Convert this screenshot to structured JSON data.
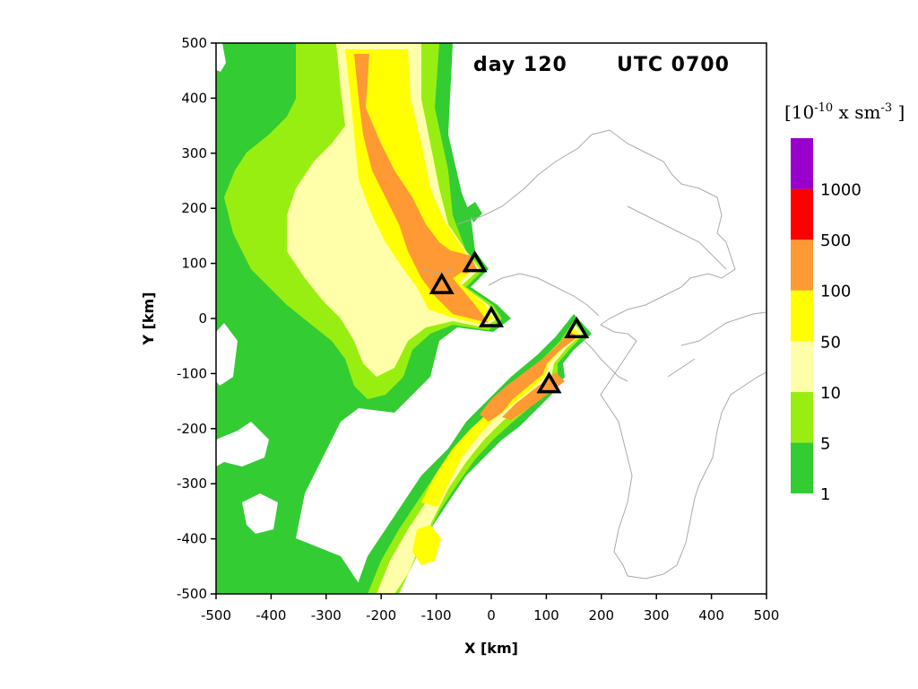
{
  "chart_data": {
    "type": "contour",
    "title_day": "day 120",
    "title_time": "UTC 0700",
    "xlabel": "X [km]",
    "ylabel": "Y [km]",
    "xlim": [
      -500,
      500
    ],
    "ylim": [
      -500,
      500
    ],
    "xticks": [
      "-500",
      "-400",
      "-300",
      "-200",
      "-100",
      "0",
      "100",
      "200",
      "300",
      "400",
      "500"
    ],
    "yticks": [
      "500",
      "400",
      "300",
      "200",
      "100",
      "0",
      "-100",
      "-200",
      "-300",
      "-400",
      "-500"
    ],
    "colorbar": {
      "unit_base": "[10",
      "unit_exp1": "-10",
      "unit_mid": " x sm",
      "unit_exp2": "-3",
      "unit_end": " ]",
      "levels": [
        "1",
        "5",
        "10",
        "50",
        "100",
        "500",
        "1000"
      ],
      "colors": [
        "#33cc33",
        "#99ee11",
        "#ffffaa",
        "#ffff00",
        "#ff9933",
        "#ff0000",
        "#9900cc"
      ]
    },
    "sources": [
      {
        "x": -30,
        "y": 100
      },
      {
        "x": -90,
        "y": 60
      },
      {
        "x": 0,
        "y": 0
      },
      {
        "x": 155,
        "y": -20
      },
      {
        "x": 105,
        "y": -120
      }
    ]
  }
}
